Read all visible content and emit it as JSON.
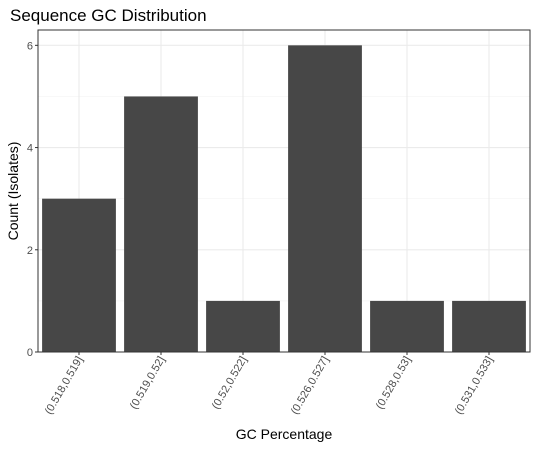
{
  "chart_data": {
    "type": "bar",
    "title": "Sequence GC Distribution",
    "xlabel": "GC Percentage",
    "ylabel": "Count (Isolates)",
    "categories": [
      "(0.518,0.519]",
      "(0.519,0.52]",
      "(0.52,0.522]",
      "(0.526,0.527]",
      "(0.528,0.53]",
      "(0.531,0.533]"
    ],
    "values": [
      3,
      5,
      1,
      6,
      1,
      1
    ],
    "ylim": [
      0,
      6.3
    ],
    "yticks": [
      0,
      2,
      4,
      6
    ],
    "grid": true,
    "legend": "none",
    "colors": {
      "bar": "#474747",
      "background": "#ffffff",
      "grid": "#ebebeb",
      "border": "#333333"
    }
  }
}
